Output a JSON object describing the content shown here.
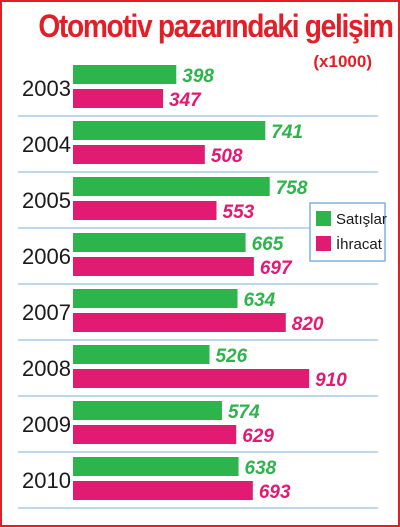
{
  "chart_data": {
    "type": "bar",
    "orientation": "horizontal",
    "title": "Otomotiv pazarındaki gelişim",
    "unit": "(x1000)",
    "categories": [
      "2003",
      "2004",
      "2005",
      "2006",
      "2007",
      "2008",
      "2009",
      "2010"
    ],
    "series": [
      {
        "name": "Satışlar",
        "color": "#2db44a",
        "values": [
          398,
          741,
          758,
          665,
          634,
          526,
          574,
          638
        ]
      },
      {
        "name": "İhracat",
        "color": "#e31a72",
        "values": [
          347,
          508,
          553,
          697,
          820,
          910,
          629,
          693
        ]
      }
    ],
    "legend_position": "right"
  }
}
